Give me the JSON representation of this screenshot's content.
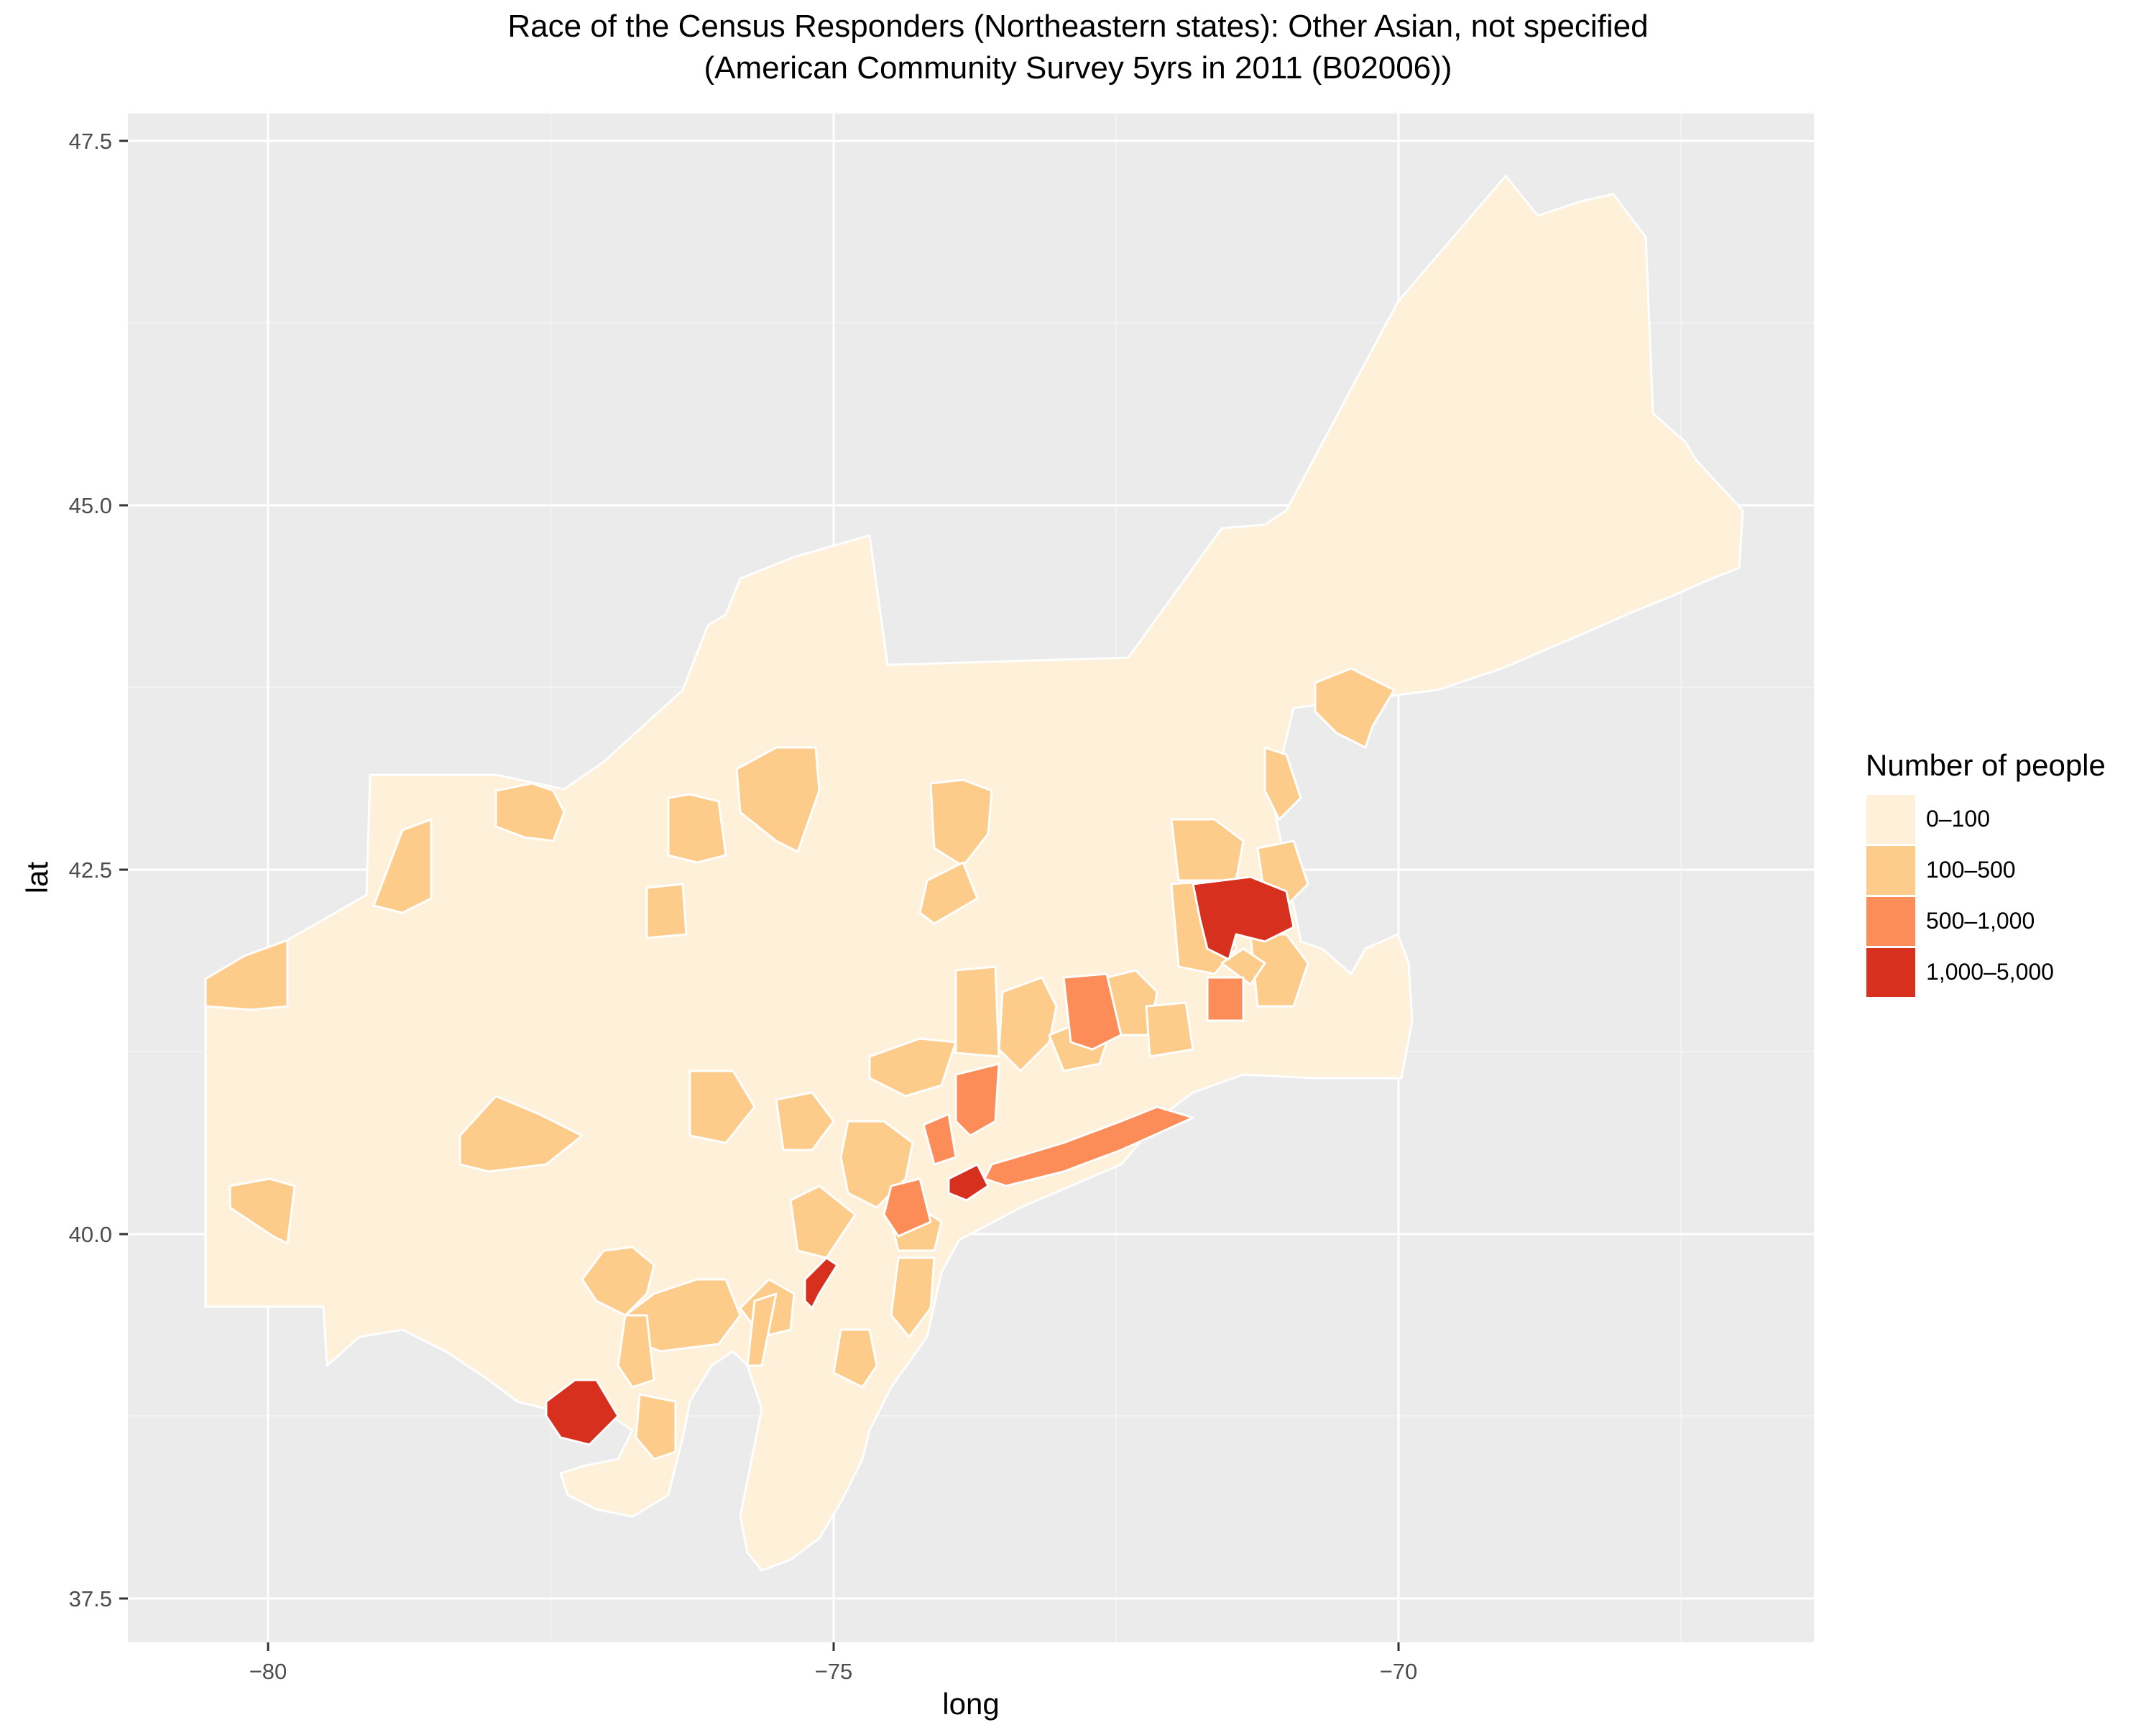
{
  "title": {
    "line1": "Race of the Census Responders (Northeastern states): Other Asian, not specified",
    "line2": "(American Community Survey 5yrs in 2011 (B02006))"
  },
  "axes": {
    "x": {
      "label": "long",
      "ticks": [
        "−80",
        "−75",
        "−70"
      ],
      "tick_values": [
        -80,
        -75,
        -70
      ],
      "range": [
        -81.2,
        -66.2
      ]
    },
    "y": {
      "label": "lat",
      "ticks": [
        "37.5",
        "40.0",
        "42.5",
        "45.0",
        "47.5"
      ],
      "tick_values": [
        37.5,
        40.0,
        42.5,
        45.0,
        47.5
      ],
      "range": [
        37.4,
        48.0
      ]
    }
  },
  "legend": {
    "title": "Number of people",
    "items": [
      {
        "label": "0–100",
        "color": "#fef0d9"
      },
      {
        "label": "100–500",
        "color": "#fdcc8a"
      },
      {
        "label": "500–1,000",
        "color": "#fc8d59"
      },
      {
        "label": "1,000–5,000",
        "color": "#d7301f"
      }
    ]
  },
  "colors": {
    "panel": "#ebebeb",
    "grid": "#ffffff",
    "outline": "#ffffff"
  }
}
